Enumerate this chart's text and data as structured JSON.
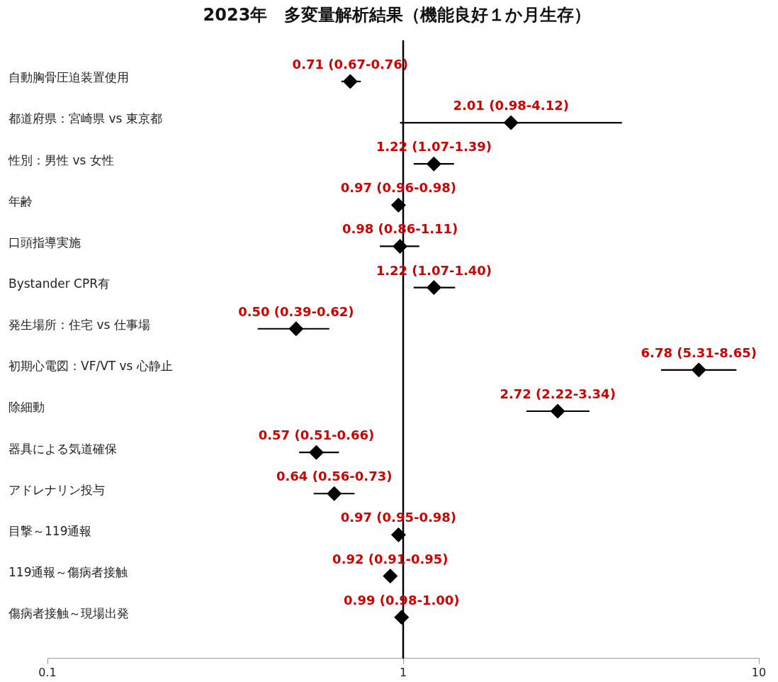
{
  "chart_data": {
    "type": "scatter",
    "title": "2023年　多変量解析結果（機能良好１か月生存）",
    "categories": [
      "自動胸骨圧迫装置使用",
      "都道府県：宮崎県 vs 東京都",
      "性別：男性 vs 女性",
      "年齢",
      "口頭指導実施",
      "Bystander CPR有",
      "発生場所：住宅 vs 仕事場",
      "初期心電図：VF/VT vs 心静止",
      "除細動",
      "器具による気道確保",
      "アドレナリン投与",
      "目撃～119通報",
      "119通報～傷病者接触",
      "傷病者接触～現場出発"
    ],
    "values": [
      0.71,
      2.01,
      1.22,
      0.97,
      0.98,
      1.22,
      0.5,
      6.78,
      2.72,
      0.57,
      0.64,
      0.97,
      0.92,
      0.99
    ],
    "errors": [
      [
        0.67,
        0.76
      ],
      [
        0.98,
        4.12
      ],
      [
        1.07,
        1.39
      ],
      [
        0.96,
        0.98
      ],
      [
        0.86,
        1.11
      ],
      [
        1.07,
        1.4
      ],
      [
        0.39,
        0.62
      ],
      [
        5.31,
        8.65
      ],
      [
        2.22,
        3.34
      ],
      [
        0.51,
        0.66
      ],
      [
        0.56,
        0.73
      ],
      [
        0.95,
        0.98
      ],
      [
        0.91,
        0.95
      ],
      [
        0.98,
        1.0
      ]
    ],
    "value_labels": [
      "0.71 (0.67-0.76)",
      "2.01 (0.98-4.12)",
      "1.22 (1.07-1.39)",
      "0.97 (0.96-0.98)",
      "0.98 (0.86-1.11)",
      "1.22 (1.07-1.40)",
      "0.50 (0.39-0.62)",
      "6.78 (5.31-8.65)",
      "2.72 (2.22-3.34)",
      "0.57 (0.51-0.66)",
      "0.64 (0.56-0.73)",
      "0.97 (0.95-0.98)",
      "0.92 (0.91-0.95)",
      "0.99 (0.98-1.00)"
    ],
    "color": "#000000",
    "orientation": "horizontal",
    "log": "x",
    "xlim": [
      0.1,
      10
    ],
    "xticks": [
      0.1,
      1,
      10
    ],
    "ref_lines": [
      {
        "axis": "x",
        "value": 1,
        "color": "#000000"
      }
    ],
    "marker": "diamond",
    "grid": false,
    "legend": false
  }
}
